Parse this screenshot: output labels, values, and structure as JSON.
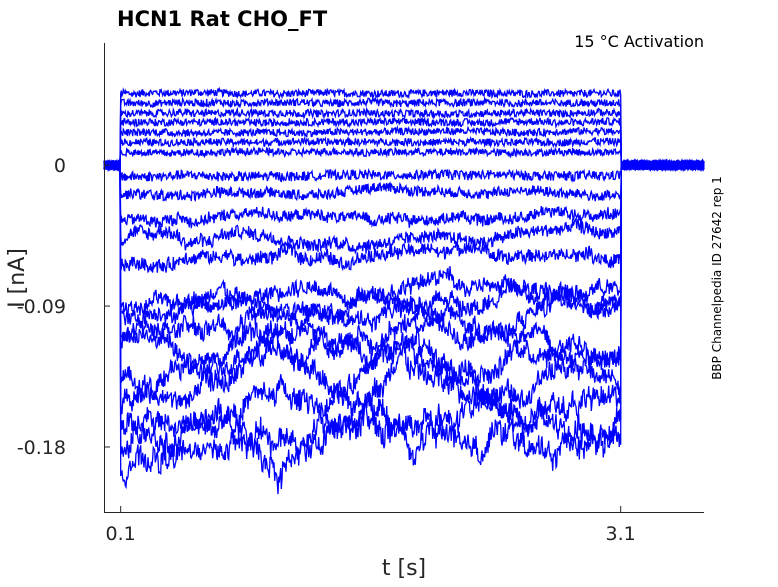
{
  "chart_data": {
    "type": "line",
    "title": "HCN1  Rat  CHO_FT",
    "annotation": "15 °C  Activation",
    "side_label": "BBP Channelpedia ID 27642 rep 1",
    "xlabel": "t [s]",
    "ylabel": "I [nA]",
    "xlim": [
      0.0,
      3.6
    ],
    "ylim": [
      -0.2215,
      0.078
    ],
    "xticks": [
      0.1,
      3.1
    ],
    "xtick_labels": [
      "0.1",
      "3.1"
    ],
    "yticks": [
      0,
      -0.09,
      -0.18
    ],
    "ytick_labels": [
      "0",
      "-0.09",
      "-0.18"
    ],
    "grid": false,
    "line_color": "#0000ff",
    "step_start": 0.1,
    "step_end": 3.1,
    "series_steady_levels_nA": [
      0.046,
      0.0396,
      0.0332,
      0.0274,
      0.0211,
      0.0147,
      0.0083,
      -0.0064,
      -0.0172,
      -0.0319,
      -0.0447,
      -0.0574,
      -0.0798,
      -0.0862,
      -0.0957,
      -0.1085,
      -0.118,
      -0.134,
      -0.1468,
      -0.1627,
      -0.172
    ]
  }
}
